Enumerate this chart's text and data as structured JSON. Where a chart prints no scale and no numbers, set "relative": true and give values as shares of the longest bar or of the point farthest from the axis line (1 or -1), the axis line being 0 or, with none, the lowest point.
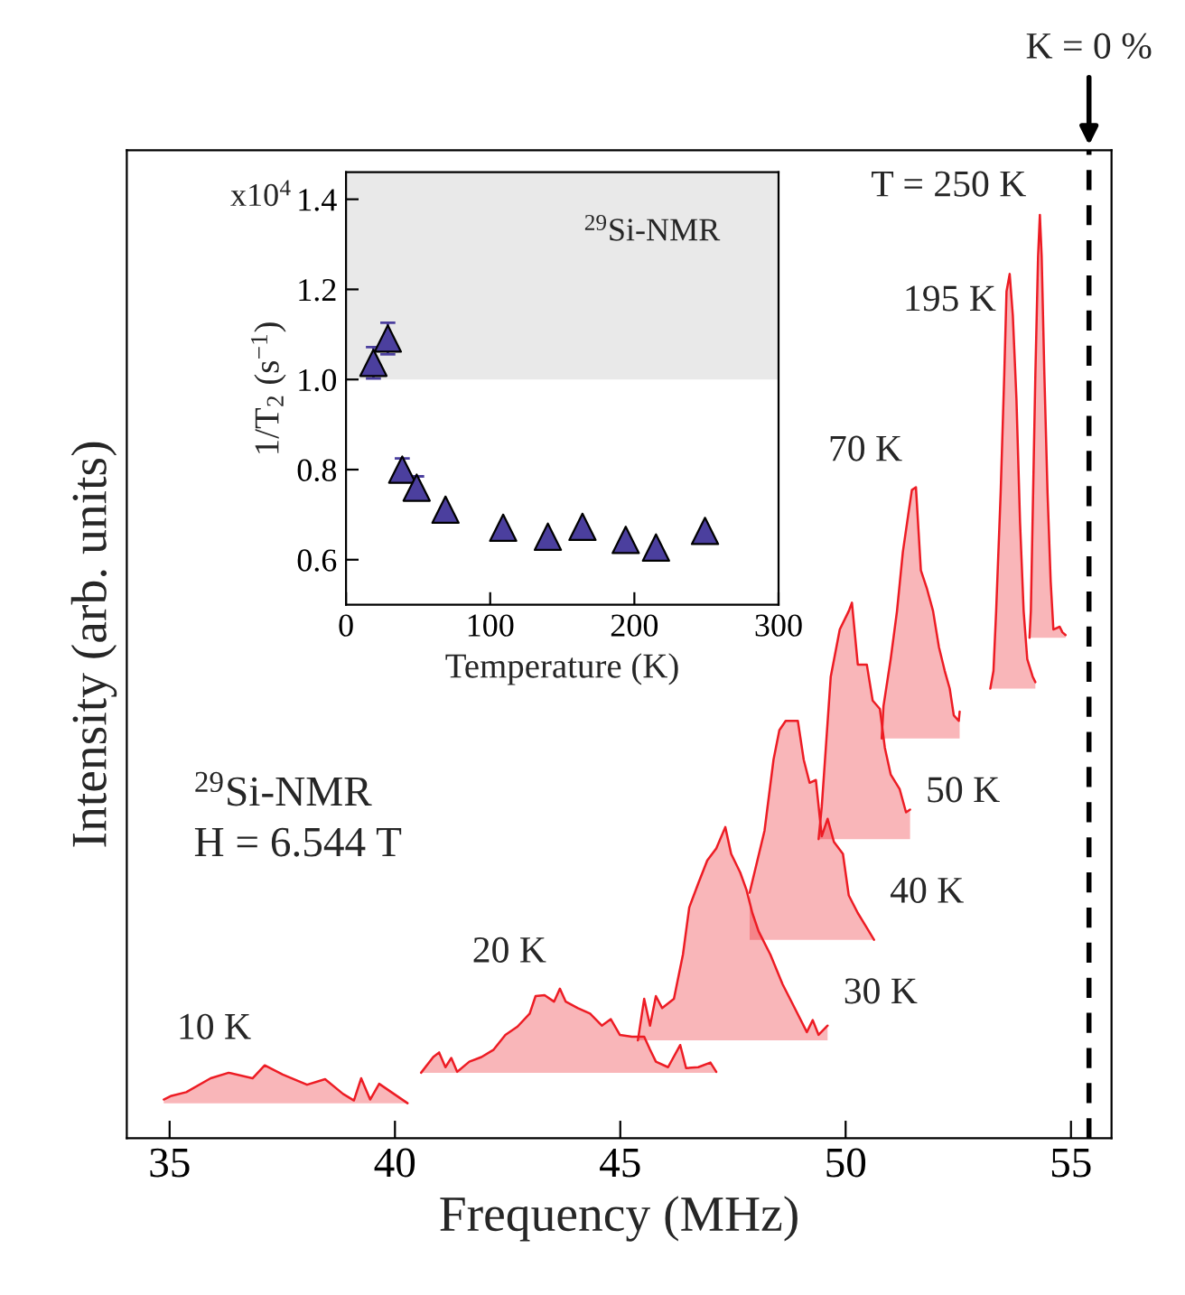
{
  "chart_data": [
    {
      "type": "area",
      "relative": true,
      "xlabel": "Frequency (MHz)",
      "ylabel": "Intensity (arb. units)",
      "xlim": [
        34.05,
        55.9
      ],
      "xticks": [
        35,
        40,
        45,
        50,
        55
      ],
      "legend": false,
      "series": [
        {
          "name": "10 K",
          "color": "#ed1c24",
          "x": [
            34.87,
            35.04,
            35.37,
            35.91,
            36.31,
            36.84,
            37.11,
            37.51,
            38.05,
            38.45,
            38.85,
            39.09,
            39.25,
            39.45,
            39.65,
            39.92,
            40.28
          ],
          "values": [
            0.042,
            0.046,
            0.05,
            0.065,
            0.071,
            0.065,
            0.079,
            0.069,
            0.058,
            0.064,
            0.048,
            0.041,
            0.065,
            0.042,
            0.059,
            0.05,
            0.038
          ]
        },
        {
          "name": "20 K",
          "color": "#ed1c24",
          "x": [
            40.58,
            40.85,
            40.98,
            41.12,
            41.25,
            41.38,
            41.65,
            41.92,
            42.19,
            42.45,
            42.72,
            42.99,
            43.12,
            43.32,
            43.53,
            43.66,
            43.79,
            44.06,
            44.33,
            44.59,
            44.79,
            44.99,
            45.26,
            45.53,
            45.66,
            45.79,
            46.06,
            46.33,
            46.46,
            46.73,
            47.0,
            47.13
          ],
          "values": [
            0.071,
            0.088,
            0.093,
            0.077,
            0.087,
            0.072,
            0.083,
            0.088,
            0.096,
            0.112,
            0.121,
            0.135,
            0.154,
            0.155,
            0.148,
            0.162,
            0.148,
            0.141,
            0.135,
            0.122,
            0.129,
            0.112,
            0.11,
            0.11,
            0.096,
            0.083,
            0.077,
            0.101,
            0.076,
            0.077,
            0.082,
            0.072
          ]
        },
        {
          "name": "30 K",
          "color": "#ed1c24",
          "x": [
            45.39,
            45.53,
            45.66,
            45.79,
            45.93,
            46.19,
            46.39,
            46.53,
            46.73,
            46.93,
            47.13,
            47.33,
            47.46,
            47.66,
            47.8,
            47.93,
            48.07,
            48.33,
            48.6,
            48.87,
            49.14,
            49.27,
            49.4,
            49.6
          ],
          "values": [
            0.106,
            0.151,
            0.122,
            0.154,
            0.141,
            0.151,
            0.199,
            0.25,
            0.276,
            0.301,
            0.314,
            0.337,
            0.308,
            0.288,
            0.269,
            0.244,
            0.224,
            0.199,
            0.167,
            0.141,
            0.115,
            0.128,
            0.112,
            0.122
          ]
        },
        {
          "name": "40 K",
          "color": "#ed1c24",
          "x": [
            47.87,
            48.2,
            48.4,
            48.53,
            48.67,
            48.94,
            49.07,
            49.2,
            49.34,
            49.47,
            49.6,
            49.74,
            49.94,
            50.07,
            50.27,
            50.47,
            50.63
          ],
          "values": [
            0.266,
            0.333,
            0.41,
            0.442,
            0.452,
            0.452,
            0.41,
            0.385,
            0.388,
            0.327,
            0.346,
            0.321,
            0.308,
            0.263,
            0.244,
            0.228,
            0.215
          ]
        },
        {
          "name": "50 K",
          "color": "#ed1c24",
          "x": [
            49.4,
            49.47,
            49.67,
            49.87,
            50.07,
            50.14,
            50.27,
            50.47,
            50.6,
            50.76,
            50.87,
            51.0,
            51.2,
            51.34,
            51.43
          ],
          "values": [
            0.324,
            0.359,
            0.5,
            0.551,
            0.571,
            0.58,
            0.513,
            0.513,
            0.474,
            0.465,
            0.423,
            0.394,
            0.378,
            0.353,
            0.356
          ]
        },
        {
          "name": "70 K",
          "color": "#ed1c24",
          "x": [
            50.8,
            50.84,
            51.0,
            51.14,
            51.27,
            51.4,
            51.47,
            51.56,
            51.67,
            51.8,
            51.94,
            52.07,
            52.2,
            52.31,
            52.4,
            52.51,
            52.53
          ],
          "values": [
            0.433,
            0.468,
            0.519,
            0.571,
            0.635,
            0.679,
            0.702,
            0.705,
            0.615,
            0.596,
            0.571,
            0.532,
            0.506,
            0.487,
            0.458,
            0.452,
            0.462
          ]
        },
        {
          "name": "195 K",
          "color": "#ed1c24",
          "x": [
            53.21,
            53.28,
            53.34,
            53.44,
            53.52,
            53.57,
            53.64,
            53.71,
            53.79,
            53.87,
            53.95,
            54.03,
            54.15,
            54.21
          ],
          "values": [
            0.487,
            0.506,
            0.571,
            0.699,
            0.827,
            0.917,
            0.936,
            0.891,
            0.801,
            0.667,
            0.571,
            0.519,
            0.5,
            0.494
          ]
        },
        {
          "name": "T = 250 K",
          "color": "#ed1c24",
          "x": [
            54.08,
            54.11,
            54.16,
            54.21,
            54.27,
            54.31,
            54.35,
            54.41,
            54.48,
            54.55,
            54.61,
            54.75,
            54.81,
            54.88
          ],
          "values": [
            0.542,
            0.571,
            0.699,
            0.827,
            0.955,
            1.0,
            0.955,
            0.827,
            0.699,
            0.603,
            0.551,
            0.554,
            0.548,
            0.545
          ]
        }
      ],
      "ref_lines": [
        {
          "axis": "x",
          "value": 55.4,
          "color": "#000000",
          "line_style": "dashed"
        }
      ],
      "annotations": [
        "$^{29}$Si-NMR",
        "H = 6.544 T",
        "K = 0 %"
      ]
    },
    {
      "type": "scatter",
      "xlabel": "Temperature (K)",
      "ylabel": "1/T$_{2}$ (s$^{−1}$)",
      "xlim": [
        0,
        300
      ],
      "xticks": [
        0,
        100,
        200,
        300
      ],
      "ylim": [
        0.5,
        1.46
      ],
      "yticks": [
        0.6,
        0.8,
        {
          "value": 1.0,
          "label": "1.0"
        },
        1.2,
        1.4
      ],
      "marker": "triangle",
      "grid": false,
      "legend": false,
      "series": [
        {
          "color": "#4b3f9e",
          "x": [
            19,
            29,
            39,
            49,
            69,
            109,
            140,
            164,
            194,
            215,
            249
          ],
          "values": [
            1.037,
            1.091,
            0.8,
            0.76,
            0.711,
            0.671,
            0.651,
            0.673,
            0.644,
            0.627,
            0.664
          ],
          "errors": [
            0.035,
            0.035,
            0.025,
            0.025,
            null,
            null,
            null,
            null,
            null,
            null,
            null
          ]
        }
      ],
      "bands": [
        {
          "axis": "y",
          "from": 1.0,
          "to": 1.46,
          "color": "#e9e9e9"
        }
      ],
      "annotations": [
        "$^{29}$Si-NMR",
        "x10$^{4}$"
      ]
    }
  ]
}
